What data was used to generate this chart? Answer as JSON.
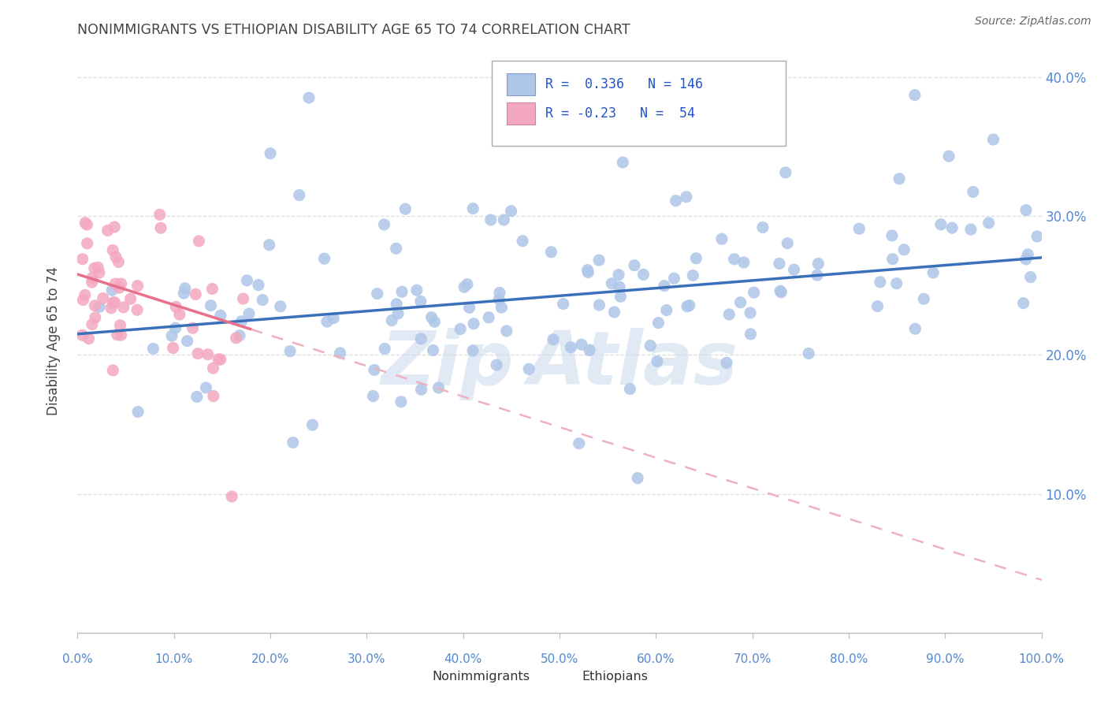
{
  "title": "NONIMMIGRANTS VS ETHIOPIAN DISABILITY AGE 65 TO 74 CORRELATION CHART",
  "source": "Source: ZipAtlas.com",
  "ylabel": "Disability Age 65 to 74",
  "xlim": [
    0,
    1.0
  ],
  "ylim": [
    0,
    0.42
  ],
  "yticks": [
    0.1,
    0.2,
    0.3,
    0.4
  ],
  "yticklabels": [
    "10.0%",
    "20.0%",
    "30.0%",
    "40.0%"
  ],
  "r_nonimmigrant": 0.336,
  "n_nonimmigrant": 146,
  "r_ethiopian": -0.23,
  "n_ethiopian": 54,
  "nonimmigrant_color": "#aec6e8",
  "ethiopian_color": "#f4a8c0",
  "trendline_nonimmigrant_color": "#3a6fba",
  "trendline_ethiopian_color": "#e8708a",
  "trendline_ethiopian_dashed_color": "#f0b0c0",
  "watermark_color": "#c8d8ec",
  "background_color": "#ffffff",
  "grid_color": "#dddddd",
  "tick_color": "#5588cc",
  "title_color": "#444444",
  "legend_text_color": "#2255cc",
  "nonimmigrant_trendline_intercept": 0.215,
  "nonimmigrant_trendline_slope": 0.055,
  "ethiopian_trendline_intercept": 0.258,
  "ethiopian_trendline_slope": -0.22
}
